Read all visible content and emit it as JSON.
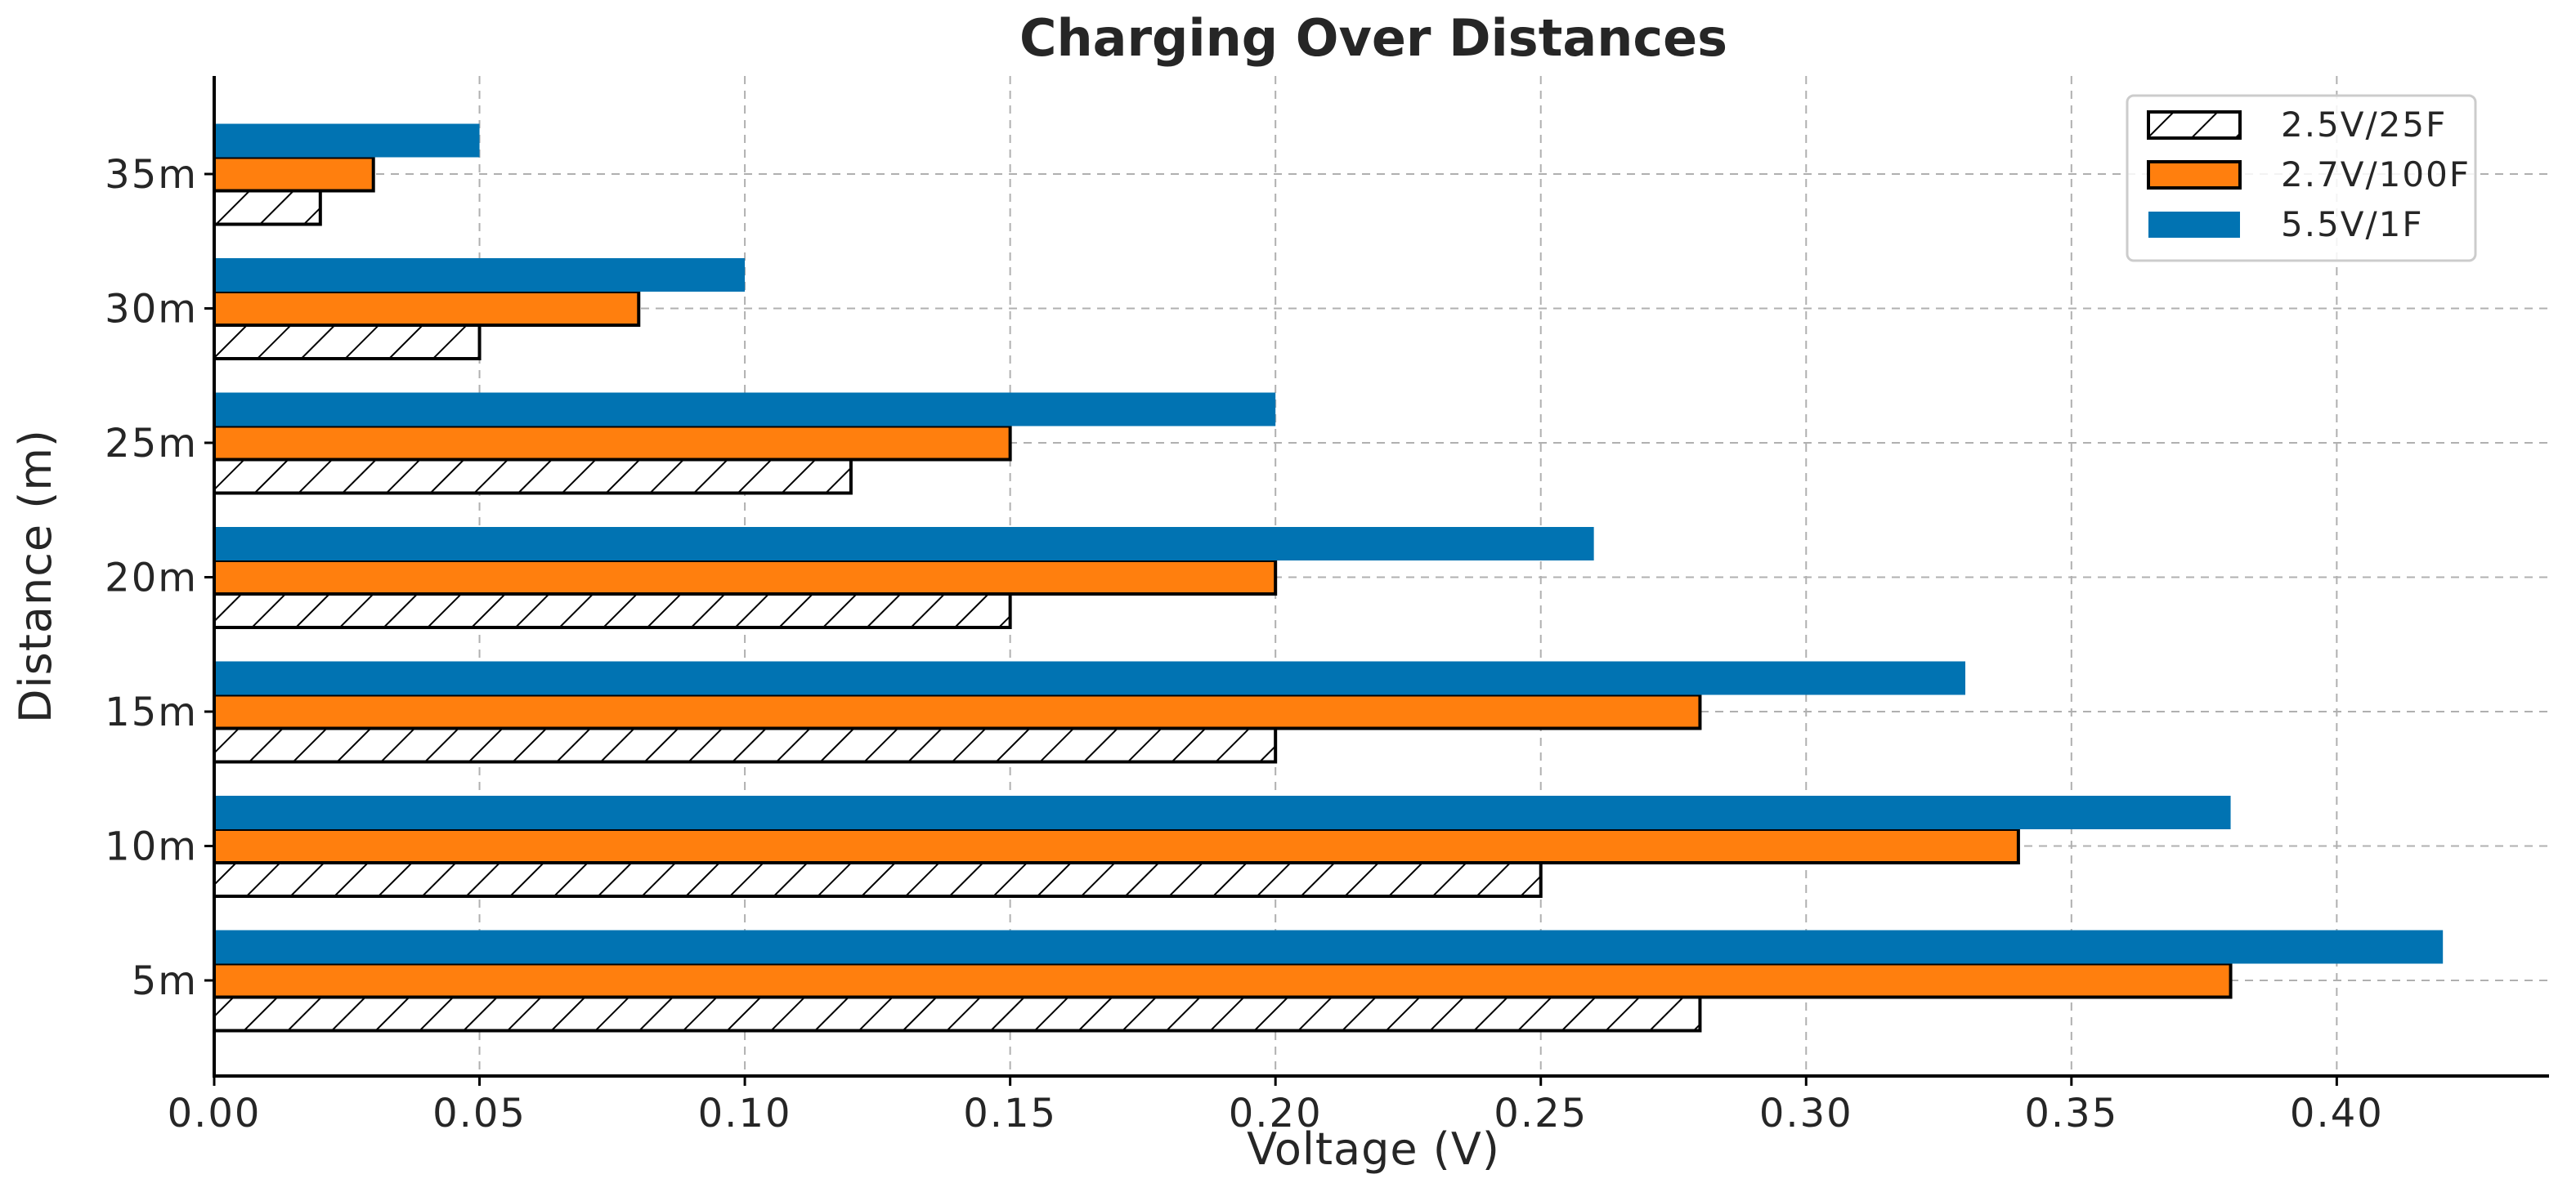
{
  "chart_data": {
    "type": "bar",
    "orientation": "horizontal",
    "title": "Charging Over Distances",
    "xlabel": "Voltage (V)",
    "ylabel": "Distance (m)",
    "categories": [
      "5m",
      "10m",
      "15m",
      "20m",
      "25m",
      "30m",
      "35m"
    ],
    "series": [
      {
        "name": "2.5V/25F",
        "values": [
          0.28,
          0.25,
          0.2,
          0.15,
          0.12,
          0.05,
          0.02
        ],
        "color": "#ffffff",
        "hatch": true,
        "edge": "#000000"
      },
      {
        "name": "2.7V/100F",
        "values": [
          0.38,
          0.34,
          0.28,
          0.2,
          0.15,
          0.08,
          0.03
        ],
        "color": "#ff7f0e",
        "hatch": false,
        "edge": "#000000"
      },
      {
        "name": "5.5V/1F",
        "values": [
          0.42,
          0.38,
          0.33,
          0.26,
          0.2,
          0.1,
          0.05
        ],
        "color": "#0173b2",
        "hatch": false,
        "edge": null
      }
    ],
    "xlim": [
      0,
      0.44
    ],
    "xticks": [
      "0.00",
      "0.05",
      "0.10",
      "0.15",
      "0.20",
      "0.25",
      "0.30",
      "0.35",
      "0.40"
    ],
    "grid": true,
    "legend": "top-right"
  }
}
